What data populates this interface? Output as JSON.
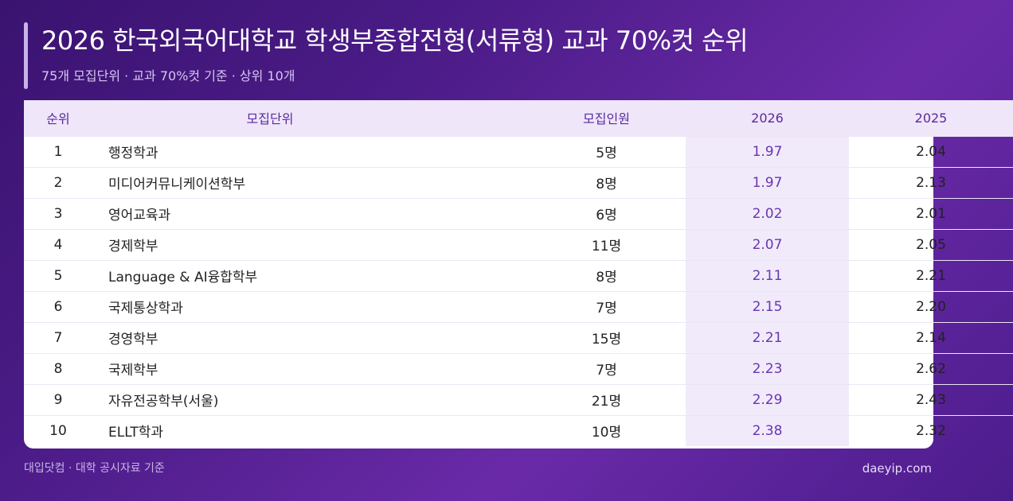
{
  "header": {
    "title": "2026 한국외국어대학교 학생부종합전형(서류형) 교과 70%컷 순위",
    "subtitle": "75개 모집단위 · 교과 70%컷 기준 · 상위 10개"
  },
  "table": {
    "headers": {
      "rank": "순위",
      "name": "모집단위",
      "count": "모집인원",
      "y2026": "2026",
      "y2025": "2025"
    },
    "rows": [
      {
        "rank": "1",
        "name": "행정학과",
        "count": "5명",
        "y2026": "1.97",
        "y2025": "2.04"
      },
      {
        "rank": "2",
        "name": "미디어커뮤니케이션학부",
        "count": "8명",
        "y2026": "1.97",
        "y2025": "2.13"
      },
      {
        "rank": "3",
        "name": "영어교육과",
        "count": "6명",
        "y2026": "2.02",
        "y2025": "2.01"
      },
      {
        "rank": "4",
        "name": "경제학부",
        "count": "11명",
        "y2026": "2.07",
        "y2025": "2.05"
      },
      {
        "rank": "5",
        "name": "Language & AI융합학부",
        "count": "8명",
        "y2026": "2.11",
        "y2025": "2.21"
      },
      {
        "rank": "6",
        "name": "국제통상학과",
        "count": "7명",
        "y2026": "2.15",
        "y2025": "2.20"
      },
      {
        "rank": "7",
        "name": "경영학부",
        "count": "15명",
        "y2026": "2.21",
        "y2025": "2.14"
      },
      {
        "rank": "8",
        "name": "국제학부",
        "count": "7명",
        "y2026": "2.23",
        "y2025": "2.62"
      },
      {
        "rank": "9",
        "name": "자유전공학부(서울)",
        "count": "21명",
        "y2026": "2.29",
        "y2025": "2.43"
      },
      {
        "rank": "10",
        "name": "ELLT학과",
        "count": "10명",
        "y2026": "2.38",
        "y2025": "2.32"
      }
    ]
  },
  "footer": {
    "source": "대입닷컴 · 대학 공시자료 기준",
    "site": "daeyip.com"
  },
  "colors": {
    "background": "#4a1b86",
    "accent": "#6a35b0",
    "header_row": "#efe6fa",
    "highlight_column": "#f1eafb"
  }
}
